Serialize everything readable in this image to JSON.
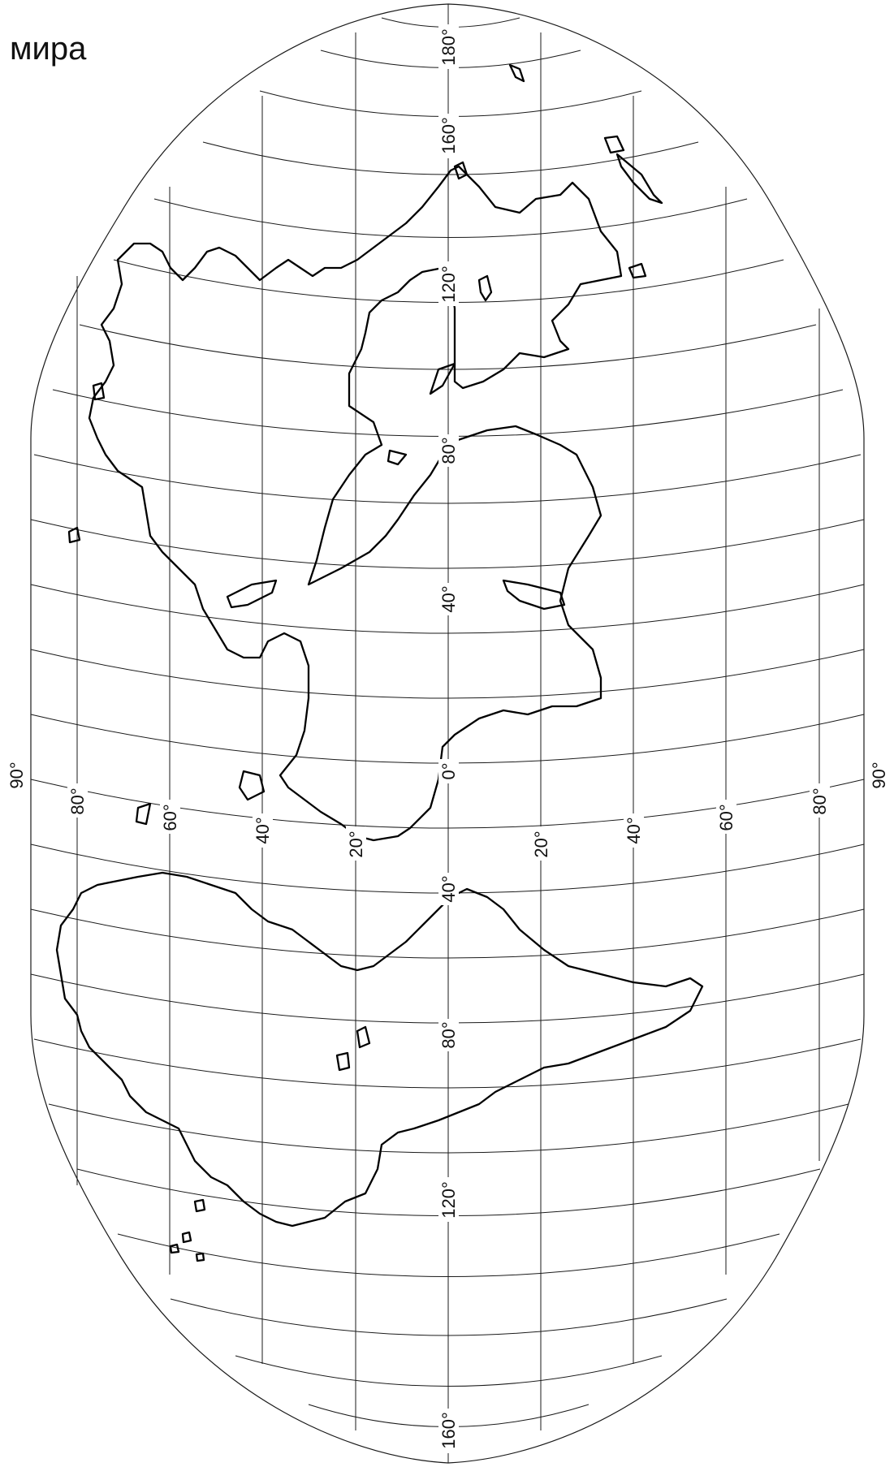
{
  "title": "мира",
  "colors": {
    "ink": "#000000",
    "paper": "#ffffff",
    "grid": "#1a1a1a"
  },
  "meridian_labels": [
    "0°",
    "20°",
    "40°",
    "60°",
    "80°",
    "20°",
    "40°",
    "60°",
    "80°"
  ],
  "edge_labels": [
    "90°",
    "90°"
  ],
  "parallel_labels": [
    "180°",
    "160°",
    "120°",
    "80°",
    "40°",
    "40°",
    "80°",
    "120°",
    "160°"
  ]
}
